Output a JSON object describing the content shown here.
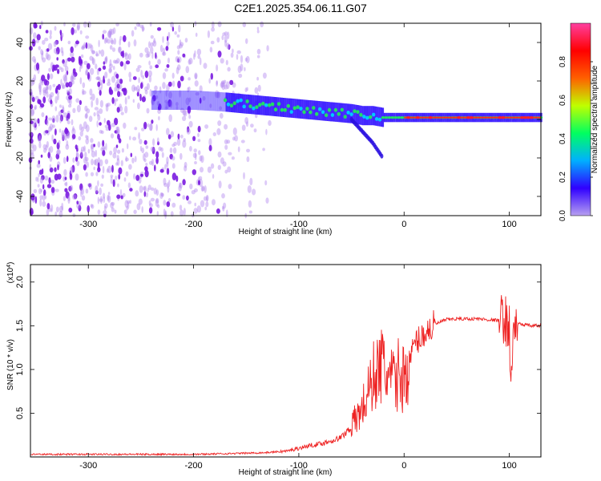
{
  "figure_title": "C2E1.2025.354.06.11.G07",
  "colors": {
    "snr_line": "#ee2222",
    "spectrum_ridge": "#ff2222",
    "spectrum_core": "#22dd66",
    "spectrum_noise": "#8a2be2",
    "colorbar_stops": [
      "#b8a0f0",
      "#3000ff",
      "#00b0ff",
      "#00ff60",
      "#c0ff00",
      "#ff6000",
      "#ff0000",
      "#ff40a0"
    ]
  },
  "chart_data": [
    {
      "id": "spectrogram",
      "type": "heatmap",
      "xlabel": "Height of straight line (km)",
      "ylabel": "Frequency (Hz)",
      "xlim": [
        -355,
        130
      ],
      "ylim": [
        -50,
        50
      ],
      "xticks": [
        -300,
        -200,
        -100,
        0,
        100
      ],
      "xtick_labels": [
        "-300",
        "-200",
        "-100",
        "0",
        "100"
      ],
      "yticks": [
        -40,
        -20,
        0,
        20,
        40
      ],
      "ytick_labels": [
        "-40",
        "-20",
        "0",
        "20",
        "40"
      ],
      "noise_region_x": [
        -355,
        -125
      ],
      "signal_ridge": {
        "x": [
          -230,
          -200,
          -170,
          -150,
          -130,
          -110,
          -90,
          -70,
          -50,
          -40,
          -30,
          -20,
          -10,
          0,
          20,
          40,
          60,
          80,
          100,
          110,
          130
        ],
        "freq_hz": [
          10,
          10,
          9,
          8,
          7,
          6,
          5,
          4,
          3,
          2,
          2,
          1,
          1,
          1,
          1,
          1,
          1,
          1,
          1,
          1,
          1
        ]
      },
      "branch": {
        "x": [
          -50,
          -40,
          -30,
          -25,
          -20
        ],
        "freq_hz": [
          0,
          -6,
          -12,
          -16,
          -20
        ]
      },
      "colorbar": {
        "label": "Normalized spectral amplitude",
        "range": [
          0,
          1
        ],
        "ticks": [
          0,
          0.2,
          0.4,
          0.6,
          0.8
        ],
        "tick_labels": [
          "0.0",
          "0.2",
          "0.4",
          "0.6",
          "0.8"
        ]
      }
    },
    {
      "id": "snr",
      "type": "line",
      "xlabel": "Height of straight line (km)",
      "ylabel": "SNR (10 * v/v)",
      "exponent_label": "(x10",
      "exponent_power": "4",
      "exponent_close": ")",
      "xlim": [
        -355,
        130
      ],
      "ylim": [
        0,
        2.2
      ],
      "xticks": [
        -300,
        -200,
        -100,
        0,
        100
      ],
      "xtick_labels": [
        "-300",
        "-200",
        "-100",
        "0",
        "100"
      ],
      "yticks": [
        0.5,
        1.0,
        1.5,
        2.0
      ],
      "ytick_labels": [
        "0.5",
        "1.0",
        "1.5",
        "2.0"
      ],
      "series": [
        {
          "name": "SNR",
          "x": [
            -355,
            -300,
            -250,
            -200,
            -160,
            -130,
            -110,
            -100,
            -90,
            -80,
            -70,
            -60,
            -50,
            -40,
            -35,
            -30,
            -25,
            -20,
            -15,
            -10,
            -5,
            0,
            5,
            10,
            20,
            30,
            40,
            50,
            60,
            70,
            80,
            90,
            95,
            100,
            102,
            104,
            110,
            120,
            130
          ],
          "y": [
            0.03,
            0.03,
            0.03,
            0.03,
            0.04,
            0.05,
            0.07,
            0.1,
            0.13,
            0.15,
            0.18,
            0.22,
            0.35,
            0.55,
            0.7,
            0.9,
            1.0,
            1.05,
            0.9,
            0.85,
            0.95,
            0.9,
            1.1,
            1.3,
            1.42,
            1.52,
            1.57,
            1.58,
            1.58,
            1.58,
            1.57,
            1.56,
            1.6,
            1.45,
            0.8,
            1.5,
            1.52,
            1.5,
            1.5
          ]
        }
      ]
    }
  ]
}
